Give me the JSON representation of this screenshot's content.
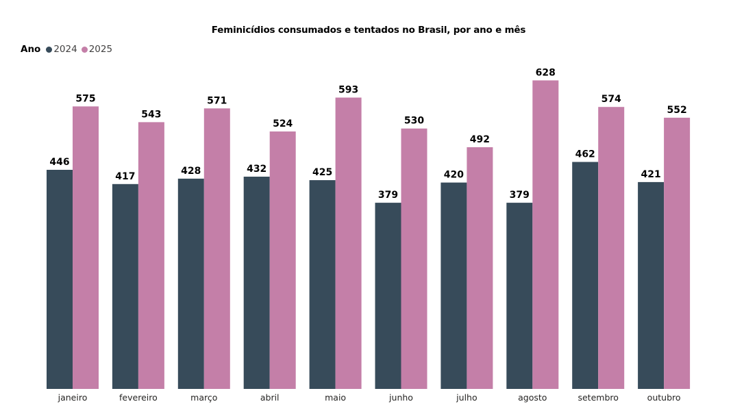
{
  "chart_data": {
    "type": "bar",
    "title": "Feminicídios consumados e tentados no Brasil, por ano e mês",
    "legend_title": "Ano",
    "legend_position": "top-left",
    "categories": [
      "janeiro",
      "fevereiro",
      "março",
      "abril",
      "maio",
      "junho",
      "julho",
      "agosto",
      "setembro",
      "outubro"
    ],
    "series": [
      {
        "name": "2024",
        "color": "#374B5A",
        "values": [
          446,
          417,
          428,
          432,
          425,
          379,
          420,
          379,
          462,
          421
        ]
      },
      {
        "name": "2025",
        "color": "#C47FA8",
        "values": [
          575,
          543,
          571,
          524,
          593,
          530,
          492,
          628,
          574,
          552
        ]
      }
    ],
    "xlabel": "",
    "ylabel": "",
    "ylim": [
      0,
      650
    ],
    "grid": false
  }
}
